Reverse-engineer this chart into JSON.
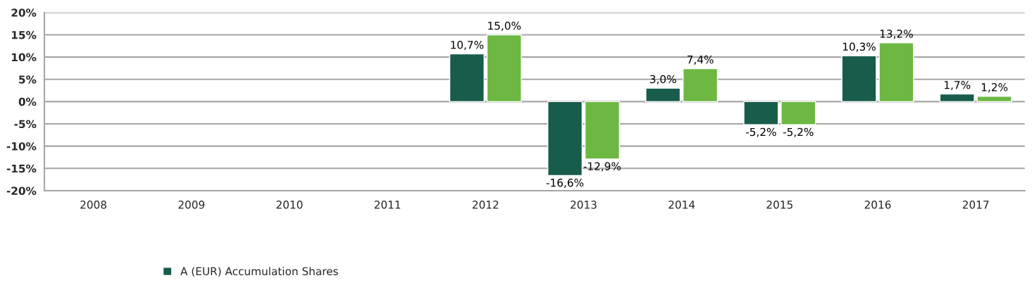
{
  "chart_data": {
    "type": "bar",
    "categories": [
      "2008",
      "2009",
      "2010",
      "2011",
      "2012",
      "2013",
      "2014",
      "2015",
      "2016",
      "2017"
    ],
    "series": [
      {
        "name": "A (EUR) Accumulation Shares",
        "color": "#185c4c",
        "values": [
          null,
          null,
          null,
          null,
          10.7,
          -16.6,
          3.0,
          -5.2,
          10.3,
          1.7
        ],
        "value_labels": [
          null,
          null,
          null,
          null,
          "10,7%",
          "-16,6%",
          "3,0%",
          "-5,2%",
          "10,3%",
          "1,7%"
        ]
      },
      {
        "color": "#6cb843",
        "values": [
          null,
          null,
          null,
          null,
          15.0,
          -12.9,
          7.4,
          -5.2,
          13.2,
          1.2
        ],
        "value_labels": [
          null,
          null,
          null,
          null,
          "15,0%",
          "-12,9%",
          "7,4%",
          "-5,2%",
          "13,2%",
          "1,2%"
        ]
      }
    ],
    "ylim": [
      -20,
      20
    ],
    "yticks": [
      {
        "value": 20,
        "label": "20%"
      },
      {
        "value": 15,
        "label": "15%"
      },
      {
        "value": 10,
        "label": "10%"
      },
      {
        "value": 5,
        "label": "5%"
      },
      {
        "value": 0,
        "label": "0%"
      },
      {
        "value": -5,
        "label": "-5%"
      },
      {
        "value": -10,
        "label": "-10%"
      },
      {
        "value": -15,
        "label": "-15%"
      },
      {
        "value": -20,
        "label": "-20%"
      }
    ],
    "grid": "y",
    "legend": "bottom"
  }
}
